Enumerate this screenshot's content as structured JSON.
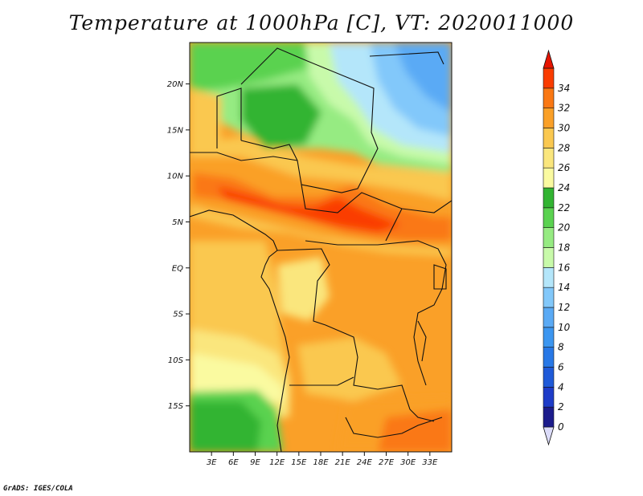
{
  "title": "Temperature at 1000hPa [C], VT: 2020011000",
  "credit": "GrADS: IGES/COLA",
  "map": {
    "lon_range": [
      0,
      36
    ],
    "lat_range": [
      -20,
      24.5
    ],
    "lat_ticks": [
      {
        "value": 20,
        "label": "20N"
      },
      {
        "value": 15,
        "label": "15N"
      },
      {
        "value": 10,
        "label": "10N"
      },
      {
        "value": 5,
        "label": "5N"
      },
      {
        "value": 0,
        "label": "EQ"
      },
      {
        "value": -5,
        "label": "5S"
      },
      {
        "value": -10,
        "label": "10S"
      },
      {
        "value": -15,
        "label": "15S"
      }
    ],
    "lon_ticks": [
      {
        "value": 3,
        "label": "3E"
      },
      {
        "value": 6,
        "label": "6E"
      },
      {
        "value": 9,
        "label": "9E"
      },
      {
        "value": 12,
        "label": "12E"
      },
      {
        "value": 15,
        "label": "15E"
      },
      {
        "value": 18,
        "label": "18E"
      },
      {
        "value": 21,
        "label": "21E"
      },
      {
        "value": 24,
        "label": "24E"
      },
      {
        "value": 27,
        "label": "27E"
      },
      {
        "value": 30,
        "label": "30E"
      },
      {
        "value": 33,
        "label": "33E"
      }
    ]
  },
  "colorbar": {
    "levels": [
      "0",
      "2",
      "4",
      "6",
      "8",
      "10",
      "12",
      "14",
      "16",
      "18",
      "20",
      "22",
      "24",
      "26",
      "28",
      "30",
      "32",
      "34"
    ],
    "colors": [
      "#1c1c8c",
      "#1e3cc8",
      "#1f5ad8",
      "#2878e6",
      "#3c96f0",
      "#5aaaf5",
      "#82c8fa",
      "#b4e6fa",
      "#c8faaa",
      "#96eb82",
      "#5ad250",
      "#32b432",
      "#fafaa0",
      "#fae67d",
      "#fac850",
      "#faa028",
      "#fa7814",
      "#fa3c00",
      "#e61400"
    ],
    "under_color": "#dcdcfa"
  }
}
